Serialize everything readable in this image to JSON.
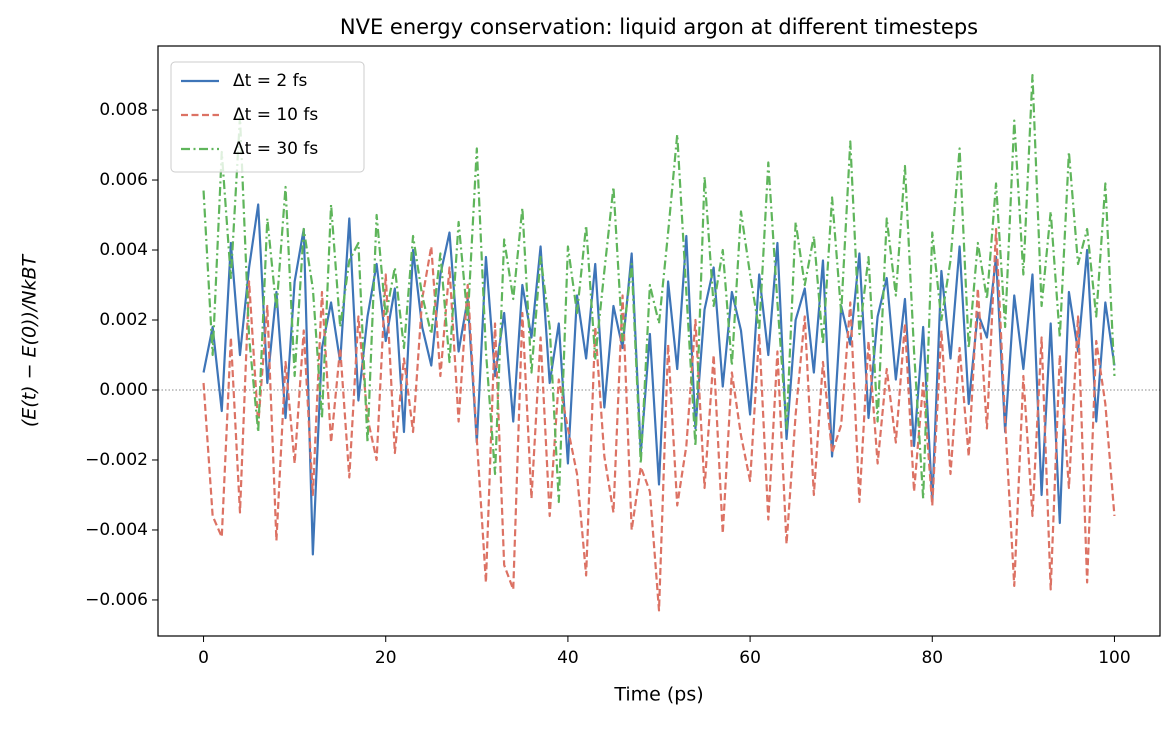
{
  "chart_data": {
    "type": "line",
    "title": "NVE energy conservation: liquid argon at different timesteps",
    "x_label": "Time (ps)",
    "y_label": "(E(t) − E(0))/NkBT",
    "x": [
      0,
      1,
      2,
      3,
      4,
      5,
      6,
      7,
      8,
      9,
      10,
      11,
      12,
      13,
      14,
      15,
      16,
      17,
      18,
      19,
      20,
      21,
      22,
      23,
      24,
      25,
      26,
      27,
      28,
      29,
      30,
      31,
      32,
      33,
      34,
      35,
      36,
      37,
      38,
      39,
      40,
      41,
      42,
      43,
      44,
      45,
      46,
      47,
      48,
      49,
      50,
      51,
      52,
      53,
      54,
      55,
      56,
      57,
      58,
      59,
      60,
      61,
      62,
      63,
      64,
      65,
      66,
      67,
      68,
      69,
      70,
      71,
      72,
      73,
      74,
      75,
      76,
      77,
      78,
      79,
      80,
      81,
      82,
      83,
      84,
      85,
      86,
      87,
      88,
      89,
      90,
      91,
      92,
      93,
      94,
      95,
      96,
      97,
      98,
      99,
      100
    ],
    "series": [
      {
        "name": "Δt = 2 fs",
        "color": "#3e75b8",
        "dash": "solid",
        "values": [
          0.0005,
          0.0018,
          -0.0006,
          0.0042,
          0.001,
          0.0035,
          0.0053,
          0.0002,
          0.0028,
          -0.0008,
          0.0031,
          0.0046,
          -0.0047,
          0.0012,
          0.0025,
          0.0008,
          0.0049,
          -0.0003,
          0.0021,
          0.0036,
          0.0014,
          0.0029,
          -0.0012,
          0.004,
          0.0018,
          0.0007,
          0.0033,
          0.0045,
          0.0011,
          0.0026,
          -0.0015,
          0.0038,
          0.0004,
          0.0022,
          -0.0009,
          0.003,
          0.0015,
          0.0041,
          0.0002,
          0.0019,
          -0.0021,
          0.0027,
          0.0009,
          0.0036,
          -0.0005,
          0.0024,
          0.0012,
          0.0039,
          -0.0018,
          0.0016,
          -0.0027,
          0.0031,
          0.0006,
          0.0044,
          -0.0011,
          0.0023,
          0.0035,
          0.0001,
          0.0028,
          0.0017,
          -0.0007,
          0.0033,
          0.001,
          0.0042,
          -0.0014,
          0.002,
          0.0029,
          0.0005,
          0.0037,
          -0.0019,
          0.0024,
          0.0013,
          0.0039,
          -0.0008,
          0.0021,
          0.0032,
          0.0003,
          0.0026,
          -0.0016,
          0.0018,
          -0.0032,
          0.0034,
          0.0009,
          0.0041,
          -0.0004,
          0.0022,
          0.0015,
          0.0038,
          -0.0012,
          0.0027,
          0.0006,
          0.0033,
          -0.003,
          0.0019,
          -0.0038,
          0.0028,
          0.0011,
          0.004,
          -0.0009,
          0.0025,
          0.0007
        ]
      },
      {
        "name": "Δt = 10 fs",
        "color": "#dc7264",
        "dash": "dashed",
        "values": [
          0.0002,
          -0.0036,
          -0.0042,
          0.0015,
          -0.0035,
          0.0031,
          -0.001,
          0.0024,
          -0.0043,
          0.0008,
          -0.0021,
          0.0017,
          -0.003,
          0.0028,
          -0.0015,
          0.0012,
          -0.0025,
          0.0021,
          -0.0008,
          -0.002,
          0.0033,
          -0.0018,
          0.0009,
          -0.0012,
          0.0026,
          0.0041,
          0.0004,
          0.0035,
          -0.0009,
          0.003,
          -0.0014,
          -0.0055,
          0.0019,
          -0.005,
          -0.0057,
          0.0022,
          -0.0031,
          0.0015,
          -0.0036,
          0.0003,
          -0.0011,
          -0.0024,
          -0.0053,
          0.0018,
          -0.0019,
          -0.0035,
          0.0027,
          -0.004,
          -0.0022,
          -0.0029,
          -0.0063,
          0.0013,
          -0.0033,
          -0.0016,
          0.002,
          -0.0028,
          0.001,
          -0.0041,
          0.0005,
          -0.0013,
          -0.0026,
          0.0016,
          -0.0037,
          0.0011,
          -0.0044,
          -0.0007,
          0.0021,
          -0.003,
          0.0008,
          -0.0018,
          -0.001,
          0.0025,
          -0.0032,
          0.0014,
          -0.0021,
          0.0006,
          -0.0015,
          0.0019,
          -0.0029,
          0.0002,
          -0.0033,
          0.0017,
          -0.0024,
          0.0012,
          -0.0019,
          0.0029,
          -0.0011,
          0.0046,
          -0.0009,
          -0.0056,
          0.0004,
          -0.0036,
          0.0015,
          -0.0057,
          0.001,
          -0.0028,
          0.0021,
          -0.0055,
          0.0014,
          -0.0004,
          -0.0036
        ]
      },
      {
        "name": "Δt = 30 fs",
        "color": "#5fb55b",
        "dash": "dashdot",
        "values": [
          0.0057,
          0.001,
          0.0068,
          0.0032,
          0.0078,
          0.0015,
          -0.0012,
          0.0049,
          0.0023,
          0.0058,
          0.0004,
          0.0046,
          0.0029,
          -0.0008,
          0.0053,
          0.0018,
          0.0037,
          0.0042,
          -0.0015,
          0.005,
          0.0021,
          0.0035,
          0.0012,
          0.0044,
          0.0027,
          0.0016,
          0.0039,
          0.0008,
          0.0048,
          0.002,
          0.0069,
          0.0011,
          -0.0024,
          0.0043,
          0.0026,
          0.0052,
          0.0005,
          0.0038,
          0.0018,
          -0.0032,
          0.0041,
          0.0022,
          0.0047,
          0.0009,
          0.0034,
          0.0058,
          0.0014,
          0.0036,
          -0.0021,
          0.003,
          0.0019,
          0.0045,
          0.0073,
          0.0028,
          -0.0016,
          0.0061,
          0.0024,
          0.004,
          0.0007,
          0.0051,
          0.0033,
          0.0017,
          0.0065,
          0.0025,
          -0.0011,
          0.0048,
          0.003,
          0.0044,
          0.0013,
          0.0055,
          0.0022,
          0.0071,
          0.0016,
          0.0038,
          -0.0009,
          0.0049,
          0.0027,
          0.0064,
          0.0011,
          -0.0031,
          0.0045,
          0.002,
          0.0037,
          0.0069,
          0.0012,
          0.0042,
          0.0026,
          0.0059,
          0.0018,
          0.0077,
          0.0033,
          0.009,
          0.0024,
          0.0051,
          0.0015,
          0.0068,
          0.0036,
          0.0046,
          0.0021,
          0.0059,
          0.0004
        ]
      }
    ],
    "xlim": [
      -5,
      105
    ],
    "xticks": [
      0,
      20,
      40,
      60,
      80,
      100
    ],
    "ylim": [
      -0.00703,
      0.00983
    ],
    "yticks": [
      {
        "value": -0.006,
        "label": "−0.006"
      },
      {
        "value": -0.004,
        "label": "−0.004"
      },
      {
        "value": -0.002,
        "label": "−0.002"
      },
      {
        "value": 0,
        "label": "0.000"
      },
      {
        "value": 0.002,
        "label": "0.002"
      },
      {
        "value": 0.004,
        "label": "0.004"
      },
      {
        "value": 0.006,
        "label": "0.006"
      },
      {
        "value": 0.008,
        "label": "0.008"
      }
    ],
    "zero_line": 0,
    "grid": false,
    "legend": "upper left"
  }
}
